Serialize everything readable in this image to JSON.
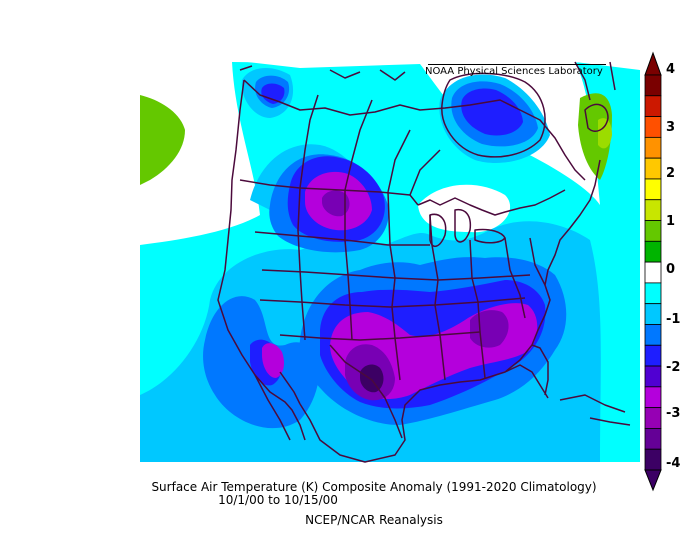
{
  "credit": "NOAA Physical Sciences Laboratory",
  "caption": {
    "title": "Surface Air Temperature (K) Composite Anomaly (1991-2020 Climatology)",
    "dates": "10/1/00   to 10/15/00",
    "source": "NCEP/NCAR Reanalysis"
  },
  "colorbar": {
    "labels": [
      "4",
      "3",
      "2",
      "1",
      "0",
      "-1",
      "-2",
      "-3",
      "-4"
    ],
    "colors": [
      "#7a0000",
      "#cc1800",
      "#ff5000",
      "#ff9200",
      "#ffc800",
      "#ffff00",
      "#c8e600",
      "#64c800",
      "#00b400",
      "#ffffff",
      "#00ffff",
      "#00c8ff",
      "#0078ff",
      "#1e1eff",
      "#5000d2",
      "#b400dc",
      "#9600b4",
      "#640096",
      "#3c0064"
    ]
  },
  "legend_colors": {
    "n05": "#00ffff",
    "n10": "#00c8ff",
    "n15": "#0078ff",
    "n20": "#1e1eff",
    "n25": "#b400dc",
    "n30": "#7800b4",
    "n35": "#3c0064",
    "p05": "#64c800",
    "p10": "#9cdc00",
    "border": "#4b0a3c"
  }
}
